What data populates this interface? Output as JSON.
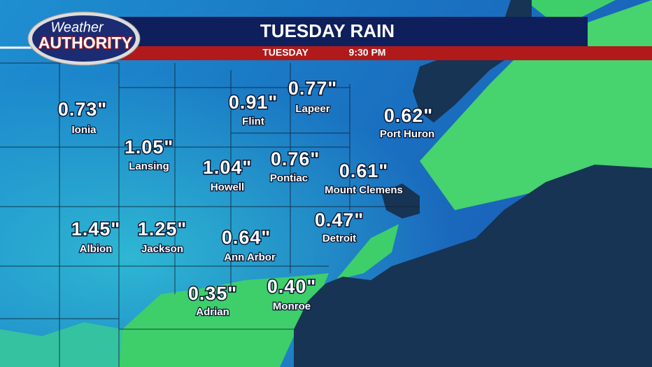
{
  "header": {
    "logo_top": "Weather",
    "logo_bottom": "AUTHORITY",
    "title": "TUESDAY RAIN",
    "day": "TUESDAY",
    "time": "9:30 PM"
  },
  "locations": [
    {
      "amount": "0.73\"",
      "city": "Ionia"
    },
    {
      "amount": "1.05\"",
      "city": "Lansing"
    },
    {
      "amount": "0.91\"",
      "city": "Flint"
    },
    {
      "amount": "0.77\"",
      "city": "Lapeer"
    },
    {
      "amount": "0.62\"",
      "city": "Port Huron"
    },
    {
      "amount": "1.04\"",
      "city": "Howell"
    },
    {
      "amount": "0.76\"",
      "city": "Pontiac"
    },
    {
      "amount": "0.61\"",
      "city": "Mount Clemens"
    },
    {
      "amount": "1.45\"",
      "city": "Albion"
    },
    {
      "amount": "1.25\"",
      "city": "Jackson"
    },
    {
      "amount": "0.64\"",
      "city": "Ann Arbor"
    },
    {
      "amount": "0.47\"",
      "city": "Detroit"
    },
    {
      "amount": "0.35\"",
      "city": "Adrian"
    },
    {
      "amount": "0.40\"",
      "city": "Monroe"
    }
  ]
}
